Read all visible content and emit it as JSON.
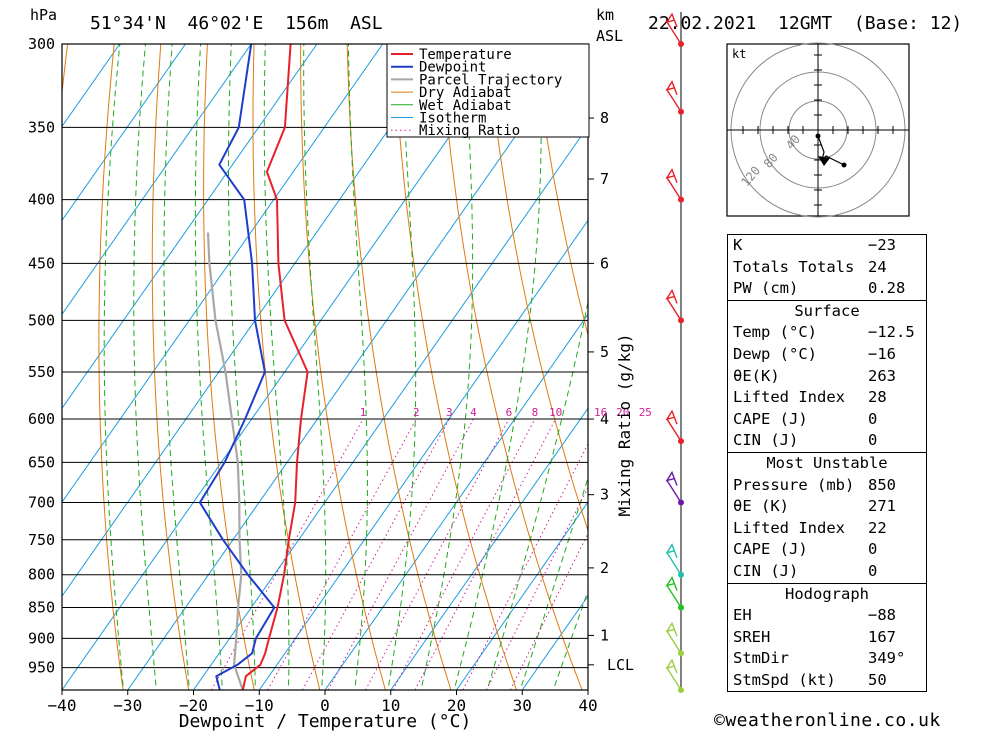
{
  "header": {
    "pressure_unit": "hPa",
    "location": "51°34'N  46°02'E  156m  ASL",
    "height_unit": "km",
    "height_unit2": "ASL",
    "datetime": "22.02.2021  12GMT  (Base: 12)"
  },
  "chart_data": {
    "type": "skew-t",
    "xlabel": "Dewpoint / Temperature (°C)",
    "ylabel_left": "hPa",
    "ylabel_right": "Mixing Ratio (g/kg)",
    "xlim": [
      -40,
      40
    ],
    "pressure_range": [
      300,
      990
    ],
    "pressure_ticks": [
      300,
      350,
      400,
      450,
      500,
      550,
      600,
      650,
      700,
      750,
      800,
      850,
      900,
      950
    ],
    "temperature_ticks": [
      -40,
      -30,
      -20,
      -10,
      0,
      10,
      20,
      30,
      40
    ],
    "height_ticks": [
      {
        "label": "8",
        "p": 344
      },
      {
        "label": "7",
        "p": 385
      },
      {
        "label": "6",
        "p": 450
      },
      {
        "label": "5",
        "p": 530
      },
      {
        "label": "4",
        "p": 600
      },
      {
        "label": "3",
        "p": 690
      },
      {
        "label": "2",
        "p": 790
      },
      {
        "label": "1",
        "p": 895
      },
      {
        "label": "LCL",
        "p": 945
      }
    ],
    "mixing_ratio_labels": [
      "1",
      "2",
      "3",
      "4",
      "6",
      "8",
      "10",
      "16",
      "20",
      "25"
    ],
    "mixing_ratio_values": [
      1,
      2,
      3,
      4,
      6,
      8,
      10,
      16,
      20,
      25
    ],
    "legend": [
      "Temperature",
      "Dewpoint",
      "Parcel Trajectory",
      "Dry Adiabat",
      "Wet Adiabat",
      "Isotherm",
      "Mixing Ratio"
    ],
    "legend_position": "top-right",
    "colors": {
      "temperature": "#e8202a",
      "dewpoint": "#1f3ccc",
      "parcel": "#a8a8a8",
      "dry_adiabat": "#e07a10",
      "wet_adiabat": "#1faa1f",
      "isotherm": "#1e9ee0",
      "mixing_ratio": "#d0209a",
      "wind_red": "#e8202a",
      "wind_purple": "#6a1aa8",
      "wind_cyan": "#20c0b0",
      "wind_green": "#20c020",
      "wind_yellowgreen": "#98d040"
    },
    "temperature_profile": [
      {
        "p": 990,
        "t": -12.5
      },
      {
        "p": 965,
        "t": -13.5
      },
      {
        "p": 945,
        "t": -12.5
      },
      {
        "p": 925,
        "t": -13.0
      },
      {
        "p": 900,
        "t": -14.0
      },
      {
        "p": 850,
        "t": -16.0
      },
      {
        "p": 800,
        "t": -18.5
      },
      {
        "p": 750,
        "t": -21.5
      },
      {
        "p": 700,
        "t": -24.5
      },
      {
        "p": 650,
        "t": -28.5
      },
      {
        "p": 600,
        "t": -32.5
      },
      {
        "p": 550,
        "t": -36.5
      },
      {
        "p": 530,
        "t": -40.0
      },
      {
        "p": 500,
        "t": -45.5
      },
      {
        "p": 450,
        "t": -52.5
      },
      {
        "p": 400,
        "t": -59.5
      },
      {
        "p": 380,
        "t": -64.0
      },
      {
        "p": 350,
        "t": -66.0
      },
      {
        "p": 300,
        "t": -74.0
      }
    ],
    "dewpoint_profile": [
      {
        "p": 990,
        "t": -16.0
      },
      {
        "p": 965,
        "t": -18.0
      },
      {
        "p": 945,
        "t": -16.0
      },
      {
        "p": 925,
        "t": -15.0
      },
      {
        "p": 900,
        "t": -16.0
      },
      {
        "p": 850,
        "t": -16.5
      },
      {
        "p": 800,
        "t": -24.0
      },
      {
        "p": 750,
        "t": -31.5
      },
      {
        "p": 700,
        "t": -39.0
      },
      {
        "p": 650,
        "t": -39.5
      },
      {
        "p": 600,
        "t": -41.0
      },
      {
        "p": 550,
        "t": -43.0
      },
      {
        "p": 500,
        "t": -50.0
      },
      {
        "p": 450,
        "t": -56.5
      },
      {
        "p": 400,
        "t": -64.5
      },
      {
        "p": 375,
        "t": -72.0
      },
      {
        "p": 350,
        "t": -73.0
      },
      {
        "p": 300,
        "t": -80.0
      }
    ],
    "parcel_profile": [
      {
        "p": 990,
        "t": -12.5
      },
      {
        "p": 945,
        "t": -16.5
      },
      {
        "p": 900,
        "t": -19.0
      },
      {
        "p": 850,
        "t": -22.0
      },
      {
        "p": 800,
        "t": -25.0
      },
      {
        "p": 750,
        "t": -29.0
      },
      {
        "p": 700,
        "t": -33.0
      },
      {
        "p": 650,
        "t": -37.5
      },
      {
        "p": 600,
        "t": -43.0
      },
      {
        "p": 550,
        "t": -49.0
      },
      {
        "p": 500,
        "t": -56.0
      },
      {
        "p": 450,
        "t": -63.0
      },
      {
        "p": 425,
        "t": -66.5
      }
    ],
    "wind_profile": [
      {
        "p": 300,
        "color": "red"
      },
      {
        "p": 340,
        "color": "red"
      },
      {
        "p": 400,
        "color": "red"
      },
      {
        "p": 500,
        "color": "red"
      },
      {
        "p": 625,
        "color": "red"
      },
      {
        "p": 700,
        "color": "purple"
      },
      {
        "p": 800,
        "color": "cyan"
      },
      {
        "p": 850,
        "color": "green"
      },
      {
        "p": 925,
        "color": "yellowgreen"
      },
      {
        "p": 990,
        "color": "yellowgreen"
      }
    ],
    "hodograph": {
      "unit": "kt",
      "ring_labels": [
        "40",
        "80",
        "120"
      ],
      "ring_values": [
        40,
        80,
        120
      ]
    }
  },
  "stats": {
    "indices": [
      {
        "label": "K",
        "value": "-23"
      },
      {
        "label": "Totals Totals",
        "value": "24"
      },
      {
        "label": "PW (cm)",
        "value": "0.28"
      }
    ],
    "surface": {
      "title": "Surface",
      "rows": [
        {
          "label": "Temp (°C)",
          "value": "-12.5"
        },
        {
          "label": "Dewp (°C)",
          "value": "-16"
        },
        {
          "label": "θE(K)",
          "value": "263"
        },
        {
          "label": "Lifted Index",
          "value": "28"
        },
        {
          "label": "CAPE (J)",
          "value": "0"
        },
        {
          "label": "CIN (J)",
          "value": "0"
        }
      ]
    },
    "most_unstable": {
      "title": "Most Unstable",
      "rows": [
        {
          "label": "Pressure (mb)",
          "value": "850"
        },
        {
          "label": "θE (K)",
          "value": "271"
        },
        {
          "label": "Lifted Index",
          "value": "22"
        },
        {
          "label": "CAPE (J)",
          "value": "0"
        },
        {
          "label": "CIN (J)",
          "value": "0"
        }
      ]
    },
    "hodograph": {
      "title": "Hodograph",
      "rows": [
        {
          "label": "EH",
          "value": "-88"
        },
        {
          "label": "SREH",
          "value": "167"
        },
        {
          "label": "StmDir",
          "value": "349°"
        },
        {
          "label": "StmSpd (kt)",
          "value": "50"
        }
      ]
    }
  },
  "footer": {
    "copyright": "©weatheronline.co.uk"
  }
}
